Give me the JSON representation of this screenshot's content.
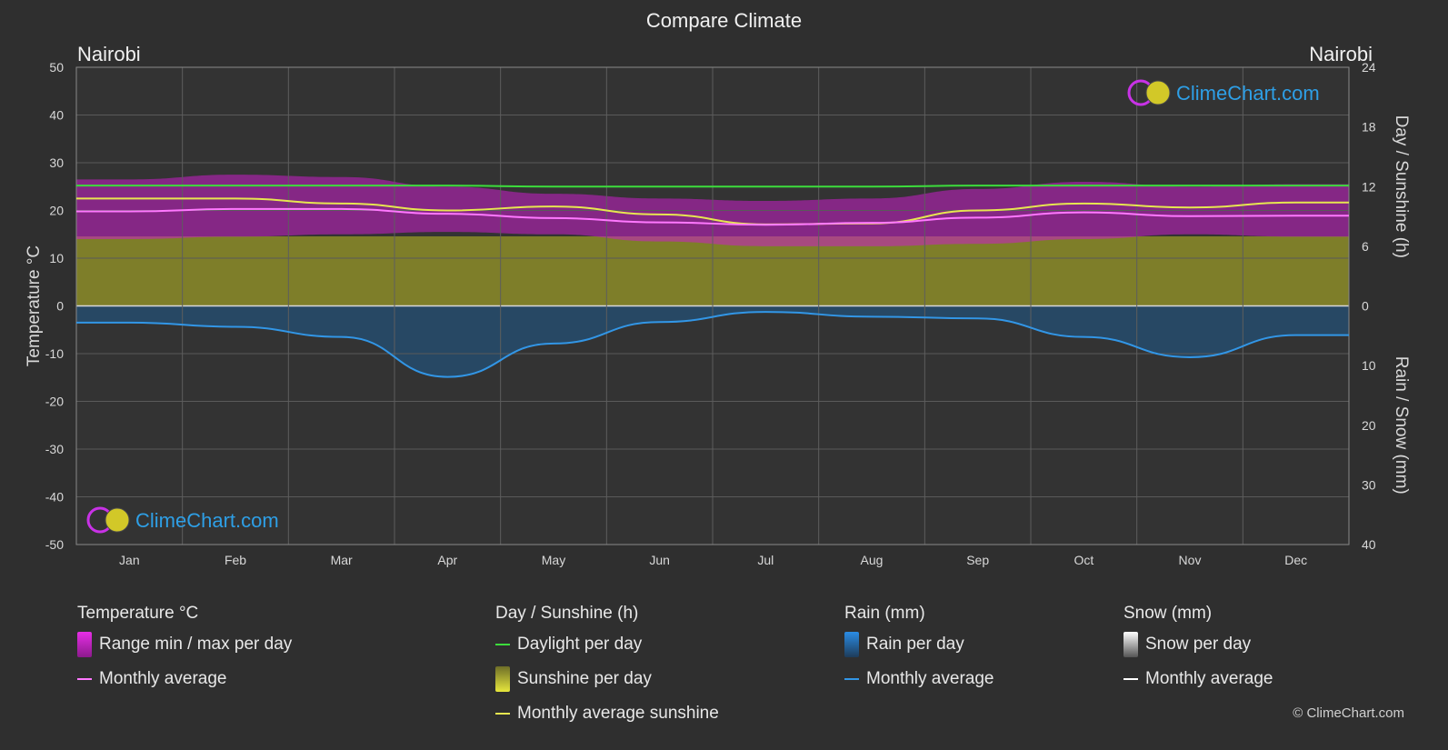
{
  "page": {
    "title": "Compare Climate",
    "location_left": "Nairobi",
    "location_right": "Nairobi",
    "watermark": "ClimeChart.com",
    "copyright": "© ClimeChart.com"
  },
  "legend": {
    "temperature": {
      "header": "Temperature °C",
      "range_label": "Range min / max per day",
      "avg_label": "Monthly average"
    },
    "sun": {
      "header": "Day / Sunshine (h)",
      "daylight_label": "Daylight per day",
      "sunshine_label": "Sunshine per day",
      "avg_label": "Monthly average sunshine"
    },
    "rain": {
      "header": "Rain (mm)",
      "per_day_label": "Rain per day",
      "avg_label": "Monthly average"
    },
    "snow": {
      "header": "Snow (mm)",
      "per_day_label": "Snow per day",
      "avg_label": "Monthly average"
    }
  },
  "colors": {
    "background": "#2f2f2f",
    "temp_range": "#c81ec8",
    "temp_avg": "#ff78ff",
    "daylight": "#3cdc3c",
    "sunshine_fill": "#8c8c28",
    "sunshine_avg": "#e6e650",
    "rain_fill": "#1e5a8c",
    "rain_avg": "#3296e6",
    "snow": "#ffffff",
    "watermark_text": "#2e9fe6"
  },
  "chart_data": {
    "type": "area",
    "categories": [
      "Jan",
      "Feb",
      "Mar",
      "Apr",
      "May",
      "Jun",
      "Jul",
      "Aug",
      "Sep",
      "Oct",
      "Nov",
      "Dec"
    ],
    "left_axis": {
      "label": "Temperature °C",
      "min": -50,
      "max": 50,
      "ticks": [
        50,
        40,
        30,
        20,
        10,
        0,
        -10,
        -20,
        -30,
        -40,
        -50
      ]
    },
    "right_axis_top": {
      "label": "Day / Sunshine (h)",
      "min": 0,
      "max": 24,
      "ticks": [
        24,
        18,
        12,
        6,
        0
      ]
    },
    "right_axis_bottom": {
      "label": "Rain / Snow (mm)",
      "min": 0,
      "max": 40,
      "ticks": [
        0,
        10,
        20,
        30,
        40
      ]
    },
    "series": [
      {
        "name": "Range min / max per day",
        "kind": "band",
        "axis": "temperature",
        "low": [
          14.0,
          14.5,
          15.0,
          15.5,
          15.0,
          13.5,
          12.5,
          12.5,
          13.0,
          14.0,
          15.0,
          14.5
        ],
        "high": [
          26.5,
          27.5,
          27.0,
          25.0,
          23.5,
          22.5,
          22.0,
          22.5,
          24.5,
          26.0,
          25.0,
          25.5
        ]
      },
      {
        "name": "Monthly average",
        "kind": "line",
        "axis": "temperature",
        "values": [
          19.8,
          20.3,
          20.3,
          19.3,
          18.4,
          17.5,
          17.0,
          17.4,
          18.5,
          19.6,
          18.8,
          18.9
        ]
      },
      {
        "name": "Daylight per day",
        "kind": "line",
        "axis": "sun",
        "values": [
          12.1,
          12.1,
          12.1,
          12.1,
          12.0,
          12.0,
          12.0,
          12.0,
          12.1,
          12.1,
          12.1,
          12.1
        ]
      },
      {
        "name": "Sunshine per day",
        "kind": "area",
        "axis": "sun",
        "values": [
          7.0,
          7.0,
          7.0,
          7.0,
          7.0,
          7.0,
          7.0,
          7.0,
          7.0,
          7.0,
          7.0,
          7.0
        ]
      },
      {
        "name": "Monthly average sunshine",
        "kind": "line",
        "axis": "sun",
        "values": [
          10.8,
          10.8,
          10.3,
          9.6,
          10.0,
          9.2,
          8.2,
          8.3,
          9.6,
          10.3,
          9.9,
          10.4
        ]
      },
      {
        "name": "Monthly average",
        "kind": "line",
        "axis": "rain",
        "values": [
          2.8,
          3.5,
          5.2,
          11.9,
          6.3,
          2.7,
          1.0,
          1.8,
          2.1,
          5.2,
          8.6,
          4.9
        ]
      }
    ]
  }
}
